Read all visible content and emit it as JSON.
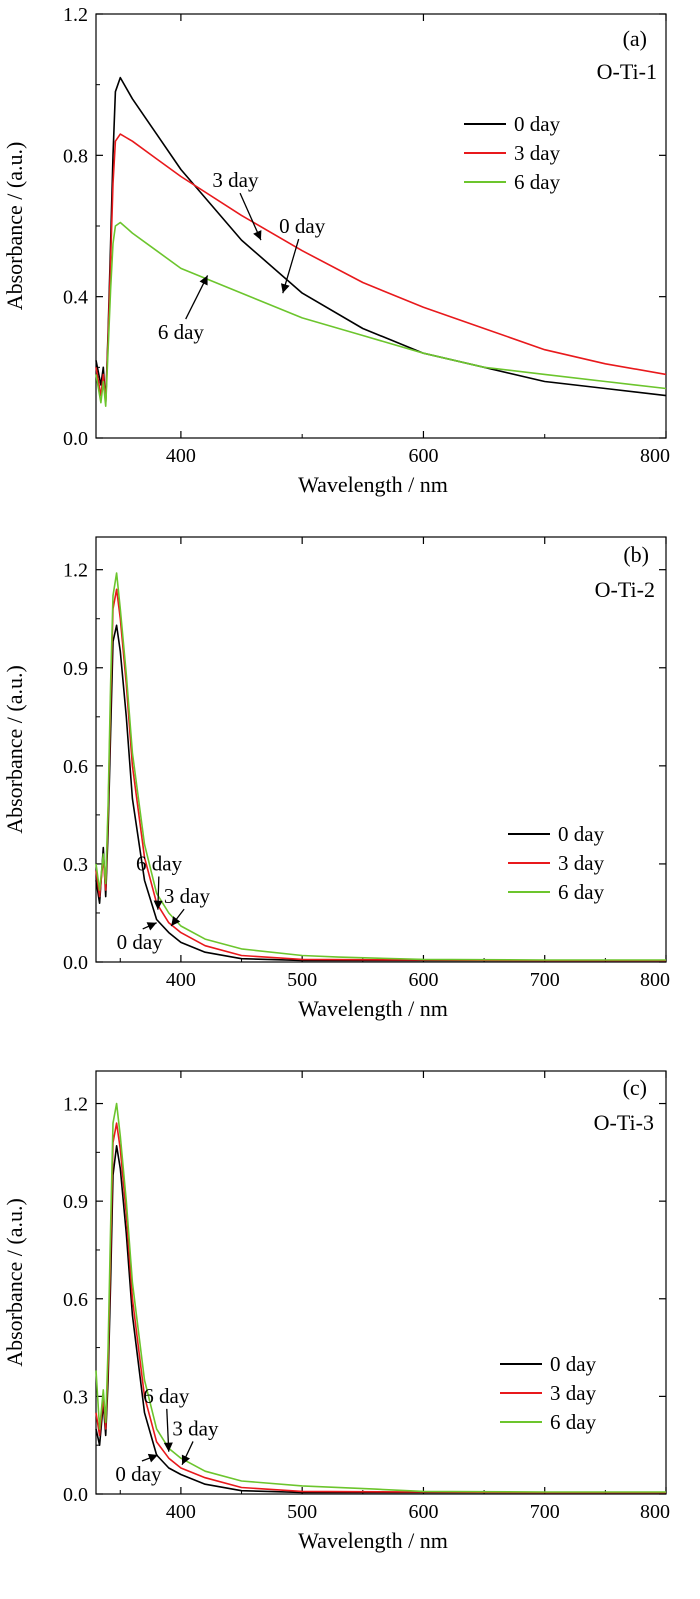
{
  "chart_data": [
    {
      "type": "line",
      "panel_label": "(a)",
      "sample_label": "O-Ti-1",
      "xlabel": "Wavelength / nm",
      "ylabel": "Absorbance / (a.u.)",
      "xlim": [
        330,
        800
      ],
      "ylim": [
        0,
        1.2
      ],
      "x_ticks": [
        400,
        600,
        800
      ],
      "y_ticks": [
        0.0,
        0.4,
        0.8,
        1.2
      ],
      "y_tick_labels": [
        "0.0",
        "0.4",
        "0.8",
        "1.2"
      ],
      "legend_position": "right",
      "series": [
        {
          "name": "0 day",
          "color": "#000000",
          "x": [
            330,
            334,
            336,
            338,
            340,
            342,
            344,
            346,
            350,
            360,
            380,
            400,
            450,
            500,
            550,
            600,
            650,
            700,
            750,
            800
          ],
          "y": [
            0.22,
            0.15,
            0.2,
            0.1,
            0.3,
            0.55,
            0.8,
            0.98,
            1.02,
            0.96,
            0.86,
            0.76,
            0.56,
            0.41,
            0.31,
            0.24,
            0.2,
            0.16,
            0.14,
            0.12
          ]
        },
        {
          "name": "3 day",
          "color": "#e8191c",
          "x": [
            330,
            334,
            336,
            338,
            340,
            342,
            344,
            346,
            350,
            360,
            380,
            400,
            450,
            500,
            550,
            600,
            650,
            700,
            750,
            800
          ],
          "y": [
            0.2,
            0.12,
            0.18,
            0.1,
            0.28,
            0.5,
            0.72,
            0.84,
            0.86,
            0.84,
            0.79,
            0.74,
            0.63,
            0.53,
            0.44,
            0.37,
            0.31,
            0.25,
            0.21,
            0.18
          ]
        },
        {
          "name": "6 day",
          "color": "#6cc52d",
          "x": [
            330,
            334,
            336,
            338,
            340,
            342,
            344,
            346,
            350,
            360,
            380,
            400,
            450,
            500,
            550,
            600,
            650,
            700,
            750,
            800
          ],
          "y": [
            0.18,
            0.1,
            0.16,
            0.09,
            0.25,
            0.42,
            0.55,
            0.6,
            0.61,
            0.58,
            0.53,
            0.48,
            0.41,
            0.34,
            0.29,
            0.24,
            0.2,
            0.18,
            0.16,
            0.14
          ]
        }
      ],
      "annotations": [
        {
          "text": "3 day",
          "tx": 445,
          "ty": 0.71,
          "ax": 466,
          "ay": 0.56
        },
        {
          "text": "0 day",
          "tx": 500,
          "ty": 0.58,
          "ax": 484,
          "ay": 0.41
        },
        {
          "text": "6 day",
          "tx": 400,
          "ty": 0.28,
          "ax": 422,
          "ay": 0.46
        }
      ]
    },
    {
      "type": "line",
      "panel_label": "(b)",
      "sample_label": "O-Ti-2",
      "xlabel": "Wavelength / nm",
      "ylabel": "Absorbance / (a.u.)",
      "xlim": [
        330,
        800
      ],
      "ylim": [
        0,
        1.3
      ],
      "x_ticks": [
        400,
        500,
        600,
        700,
        800
      ],
      "y_ticks": [
        0.0,
        0.3,
        0.6,
        0.9,
        1.2
      ],
      "y_tick_labels": [
        "0.0",
        "0.3",
        "0.6",
        "0.9",
        "1.2"
      ],
      "legend_position": "right",
      "series": [
        {
          "name": "0 day",
          "color": "#000000",
          "x": [
            330,
            333,
            336,
            338,
            340,
            342,
            344,
            347,
            350,
            355,
            360,
            370,
            380,
            390,
            400,
            420,
            450,
            500,
            600,
            700,
            800
          ],
          "y": [
            0.25,
            0.18,
            0.35,
            0.2,
            0.4,
            0.7,
            0.98,
            1.03,
            0.95,
            0.75,
            0.5,
            0.25,
            0.13,
            0.09,
            0.06,
            0.03,
            0.01,
            0.005,
            0.005,
            0.005,
            0.005
          ]
        },
        {
          "name": "3 day",
          "color": "#e8191c",
          "x": [
            330,
            333,
            336,
            338,
            340,
            342,
            344,
            347,
            350,
            355,
            360,
            370,
            380,
            390,
            400,
            420,
            450,
            500,
            600,
            700,
            800
          ],
          "y": [
            0.28,
            0.2,
            0.32,
            0.22,
            0.45,
            0.8,
            1.08,
            1.14,
            1.05,
            0.85,
            0.6,
            0.32,
            0.18,
            0.12,
            0.09,
            0.05,
            0.02,
            0.008,
            0.006,
            0.005,
            0.005
          ]
        },
        {
          "name": "6 day",
          "color": "#6cc52d",
          "x": [
            330,
            333,
            336,
            338,
            340,
            342,
            344,
            347,
            350,
            355,
            360,
            370,
            380,
            390,
            400,
            420,
            450,
            500,
            530,
            600,
            700,
            800
          ],
          "y": [
            0.3,
            0.22,
            0.33,
            0.24,
            0.48,
            0.85,
            1.12,
            1.19,
            1.08,
            0.88,
            0.64,
            0.36,
            0.21,
            0.15,
            0.11,
            0.07,
            0.04,
            0.02,
            0.015,
            0.008,
            0.006,
            0.006
          ]
        }
      ],
      "annotations": [
        {
          "text": "6 day",
          "tx": 382,
          "ty": 0.28,
          "ax": 381,
          "ay": 0.16
        },
        {
          "text": "3 day",
          "tx": 405,
          "ty": 0.18,
          "ax": 392,
          "ay": 0.11
        },
        {
          "text": "0 day",
          "tx": 366,
          "ty": 0.04,
          "ax": 380,
          "ay": 0.12
        }
      ]
    },
    {
      "type": "line",
      "panel_label": "(c)",
      "sample_label": "O-Ti-3",
      "xlabel": "Wavelength / nm",
      "ylabel": "Absorbance / (a.u.)",
      "xlim": [
        330,
        800
      ],
      "ylim": [
        0,
        1.3
      ],
      "x_ticks": [
        400,
        500,
        600,
        700,
        800
      ],
      "y_ticks": [
        0.0,
        0.3,
        0.6,
        0.9,
        1.2
      ],
      "y_tick_labels": [
        "0.0",
        "0.3",
        "0.6",
        "0.9",
        "1.2"
      ],
      "legend_position": "right",
      "series": [
        {
          "name": "0 day",
          "color": "#000000",
          "x": [
            330,
            333,
            336,
            338,
            340,
            342,
            344,
            347,
            350,
            355,
            360,
            370,
            380,
            390,
            400,
            420,
            450,
            500,
            600,
            700,
            800
          ],
          "y": [
            0.2,
            0.15,
            0.28,
            0.18,
            0.35,
            0.65,
            0.98,
            1.07,
            1.0,
            0.8,
            0.55,
            0.25,
            0.12,
            0.08,
            0.06,
            0.03,
            0.01,
            0.005,
            0.005,
            0.005,
            0.005
          ]
        },
        {
          "name": "3 day",
          "color": "#e8191c",
          "x": [
            330,
            333,
            336,
            338,
            340,
            342,
            344,
            347,
            350,
            355,
            360,
            370,
            380,
            390,
            400,
            420,
            450,
            500,
            600,
            700,
            800
          ],
          "y": [
            0.25,
            0.18,
            0.3,
            0.2,
            0.4,
            0.75,
            1.08,
            1.14,
            1.06,
            0.86,
            0.6,
            0.3,
            0.16,
            0.11,
            0.08,
            0.05,
            0.02,
            0.008,
            0.006,
            0.005,
            0.005
          ]
        },
        {
          "name": "6 day",
          "color": "#6cc52d",
          "x": [
            330,
            333,
            336,
            338,
            340,
            342,
            344,
            347,
            350,
            355,
            360,
            370,
            380,
            390,
            400,
            420,
            450,
            500,
            560,
            600,
            700,
            800
          ],
          "y": [
            0.38,
            0.2,
            0.32,
            0.22,
            0.45,
            0.82,
            1.14,
            1.2,
            1.1,
            0.9,
            0.65,
            0.35,
            0.2,
            0.14,
            0.11,
            0.07,
            0.04,
            0.025,
            0.015,
            0.008,
            0.006,
            0.006
          ]
        }
      ],
      "annotations": [
        {
          "text": "6 day",
          "tx": 388,
          "ty": 0.28,
          "ax": 390,
          "ay": 0.13
        },
        {
          "text": "3 day",
          "tx": 412,
          "ty": 0.18,
          "ax": 401,
          "ay": 0.09
        },
        {
          "text": "0 day",
          "tx": 365,
          "ty": 0.04,
          "ax": 381,
          "ay": 0.12
        }
      ]
    }
  ]
}
